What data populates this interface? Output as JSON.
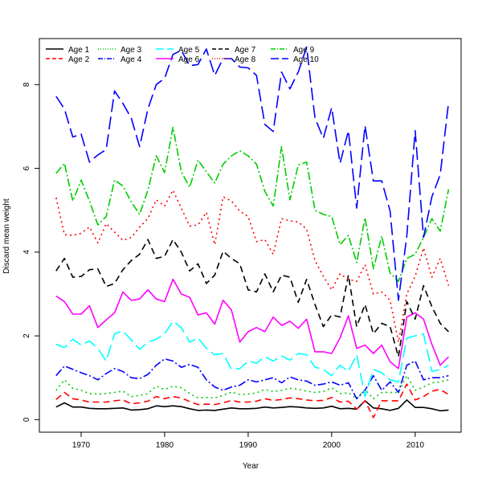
{
  "chart_data": {
    "type": "line",
    "title": "",
    "xlabel": "Year",
    "ylabel": "Discard mean weight",
    "xlim": [
      1965,
      2015.5
    ],
    "ylim": [
      -0.3,
      9.1
    ],
    "xticks": [
      1970,
      1980,
      1990,
      2000,
      2010
    ],
    "yticks": [
      0,
      2,
      4,
      6,
      8
    ],
    "legend_position": "top-left",
    "x": [
      1967,
      1968,
      1969,
      1970,
      1971,
      1972,
      1973,
      1974,
      1975,
      1976,
      1977,
      1978,
      1979,
      1980,
      1981,
      1982,
      1983,
      1984,
      1985,
      1986,
      1987,
      1988,
      1989,
      1990,
      1991,
      1992,
      1993,
      1994,
      1995,
      1996,
      1997,
      1998,
      1999,
      2000,
      2001,
      2002,
      2003,
      2004,
      2005,
      2006,
      2007,
      2008,
      2009,
      2010,
      2011,
      2012,
      2013,
      2014
    ],
    "series": [
      {
        "name": "Age 1",
        "color": "#000000",
        "dash": "solid",
        "values": [
          0.3,
          0.4,
          0.3,
          0.3,
          0.27,
          0.26,
          0.26,
          0.27,
          0.28,
          0.23,
          0.24,
          0.26,
          0.33,
          0.31,
          0.33,
          0.31,
          0.26,
          0.22,
          0.23,
          0.22,
          0.25,
          0.28,
          0.26,
          0.26,
          0.27,
          0.3,
          0.28,
          0.29,
          0.31,
          0.3,
          0.28,
          0.27,
          0.28,
          0.32,
          0.26,
          0.27,
          0.25,
          0.45,
          0.28,
          0.26,
          0.22,
          0.27,
          0.47,
          0.29,
          0.29,
          0.26,
          0.21,
          0.23
        ]
      },
      {
        "name": "Age 2",
        "color": "#ff0000",
        "dash": "8,5",
        "values": [
          0.48,
          0.65,
          0.5,
          0.47,
          0.42,
          0.42,
          0.42,
          0.45,
          0.47,
          0.38,
          0.4,
          0.44,
          0.55,
          0.5,
          0.55,
          0.52,
          0.43,
          0.36,
          0.37,
          0.36,
          0.4,
          0.46,
          0.42,
          0.42,
          0.44,
          0.5,
          0.46,
          0.48,
          0.52,
          0.5,
          0.47,
          0.45,
          0.46,
          0.53,
          0.42,
          0.44,
          0.25,
          0.45,
          0.05,
          0.45,
          0.45,
          0.45,
          0.85,
          0.47,
          0.55,
          0.68,
          0.72,
          0.6
        ]
      },
      {
        "name": "Age 3",
        "color": "#00cc00",
        "dash": "2,4",
        "values": [
          0.7,
          0.95,
          0.75,
          0.7,
          0.62,
          0.61,
          0.62,
          0.65,
          0.68,
          0.55,
          0.58,
          0.62,
          0.8,
          0.72,
          0.8,
          0.76,
          0.62,
          0.52,
          0.53,
          0.52,
          0.58,
          0.66,
          0.6,
          0.61,
          0.64,
          0.72,
          0.67,
          0.7,
          0.75,
          0.72,
          0.68,
          0.65,
          0.67,
          0.76,
          0.62,
          0.64,
          0.5,
          0.72,
          0.5,
          0.65,
          0.65,
          0.65,
          1.05,
          0.7,
          0.78,
          0.88,
          0.9,
          0.95
        ]
      },
      {
        "name": "Age 4",
        "color": "#0000ff",
        "dash": "10,3,2,3",
        "values": [
          1.05,
          1.28,
          1.2,
          1.12,
          1.05,
          0.95,
          1.1,
          1.22,
          1.15,
          1.0,
          0.98,
          1.08,
          1.3,
          1.45,
          1.4,
          1.25,
          1.32,
          1.25,
          0.95,
          0.78,
          0.7,
          0.78,
          0.82,
          0.95,
          0.9,
          0.95,
          1.0,
          0.88,
          1.02,
          0.95,
          0.92,
          0.82,
          0.85,
          0.9,
          0.82,
          0.88,
          0.5,
          0.7,
          1.05,
          0.7,
          0.9,
          0.65,
          1.3,
          1.4,
          0.95,
          1.0,
          1.0,
          1.05
        ]
      },
      {
        "name": "Age 5",
        "color": "#00ffff",
        "dash": "16,6",
        "values": [
          1.8,
          1.72,
          1.92,
          1.78,
          1.88,
          1.7,
          1.4,
          2.05,
          2.12,
          1.9,
          1.68,
          1.85,
          1.92,
          2.05,
          2.35,
          2.2,
          1.85,
          1.95,
          1.7,
          1.55,
          1.58,
          1.2,
          1.22,
          1.4,
          1.35,
          1.5,
          1.4,
          1.52,
          1.42,
          1.58,
          1.55,
          1.25,
          1.2,
          1.05,
          1.3,
          1.15,
          1.55,
          0.55,
          1.2,
          1.12,
          0.95,
          0.9,
          1.95,
          2.0,
          2.05,
          1.15,
          1.2,
          1.3
        ]
      },
      {
        "name": "Age 6",
        "color": "#ff00ff",
        "dash": "solid",
        "values": [
          2.95,
          2.82,
          2.52,
          2.52,
          2.72,
          2.2,
          2.38,
          2.55,
          3.05,
          2.85,
          2.88,
          3.1,
          2.88,
          2.82,
          3.35,
          3.0,
          2.92,
          2.5,
          2.55,
          2.28,
          2.85,
          2.62,
          1.85,
          2.1,
          2.2,
          2.1,
          2.45,
          2.25,
          2.35,
          2.18,
          2.4,
          1.62,
          1.62,
          1.58,
          1.95,
          2.48,
          1.7,
          1.78,
          1.58,
          1.78,
          1.38,
          1.22,
          2.45,
          2.55,
          2.4,
          1.8,
          1.3,
          1.5
        ]
      },
      {
        "name": "Age 7",
        "color": "#000000",
        "dash": "8,5",
        "values": [
          3.55,
          3.85,
          3.4,
          3.42,
          3.58,
          3.6,
          3.18,
          3.25,
          3.58,
          3.8,
          3.95,
          4.3,
          3.85,
          3.9,
          4.3,
          4.0,
          3.55,
          3.72,
          3.25,
          3.45,
          4.02,
          3.85,
          3.72,
          3.1,
          3.05,
          3.48,
          3.05,
          3.45,
          3.4,
          2.8,
          3.35,
          2.75,
          2.22,
          2.5,
          2.45,
          3.45,
          2.22,
          2.75,
          2.05,
          2.3,
          2.22,
          1.5,
          2.82,
          2.4,
          3.2,
          2.7,
          2.3,
          2.1
        ]
      },
      {
        "name": "Age 8",
        "color": "#ff0000",
        "dash": "2,4",
        "values": [
          5.3,
          4.42,
          4.4,
          4.45,
          4.6,
          4.22,
          4.68,
          4.48,
          4.28,
          4.35,
          4.6,
          4.8,
          5.25,
          5.1,
          5.48,
          5.05,
          4.62,
          4.65,
          4.95,
          4.18,
          5.32,
          5.22,
          4.98,
          4.85,
          4.25,
          4.3,
          3.95,
          4.8,
          4.75,
          4.72,
          4.55,
          3.8,
          3.42,
          3.1,
          3.48,
          3.35,
          3.3,
          3.7,
          3.0,
          3.05,
          2.85,
          1.85,
          3.0,
          3.42,
          4.1,
          3.4,
          3.85,
          3.2
        ]
      },
      {
        "name": "Age 9",
        "color": "#00cc00",
        "dash": "10,3,2,3",
        "values": [
          5.88,
          6.12,
          5.22,
          5.72,
          5.22,
          4.65,
          4.85,
          5.72,
          5.58,
          5.2,
          4.9,
          5.48,
          6.3,
          5.9,
          6.98,
          5.92,
          5.55,
          6.2,
          5.92,
          5.65,
          6.1,
          6.3,
          6.42,
          6.3,
          6.1,
          5.45,
          5.1,
          6.52,
          5.25,
          6.08,
          6.15,
          5.0,
          4.9,
          4.85,
          4.18,
          4.4,
          3.75,
          4.82,
          3.6,
          4.38,
          3.5,
          3.3,
          3.85,
          3.95,
          4.35,
          4.8,
          4.5,
          5.5
        ]
      },
      {
        "name": "Age 10",
        "color": "#0000ff",
        "dash": "16,6",
        "values": [
          7.72,
          7.42,
          6.75,
          6.82,
          6.15,
          6.32,
          6.45,
          7.85,
          7.55,
          7.2,
          6.52,
          7.42,
          8.0,
          8.15,
          8.72,
          8.82,
          8.45,
          8.48,
          8.85,
          8.22,
          8.62,
          8.62,
          8.42,
          8.4,
          8.22,
          7.05,
          6.88,
          8.3,
          7.9,
          8.3,
          8.9,
          7.2,
          6.72,
          7.45,
          6.12,
          6.9,
          5.05,
          7.02,
          5.7,
          5.7,
          4.98,
          2.85,
          4.38,
          6.9,
          4.35,
          5.32,
          5.85,
          7.58
        ]
      }
    ]
  }
}
